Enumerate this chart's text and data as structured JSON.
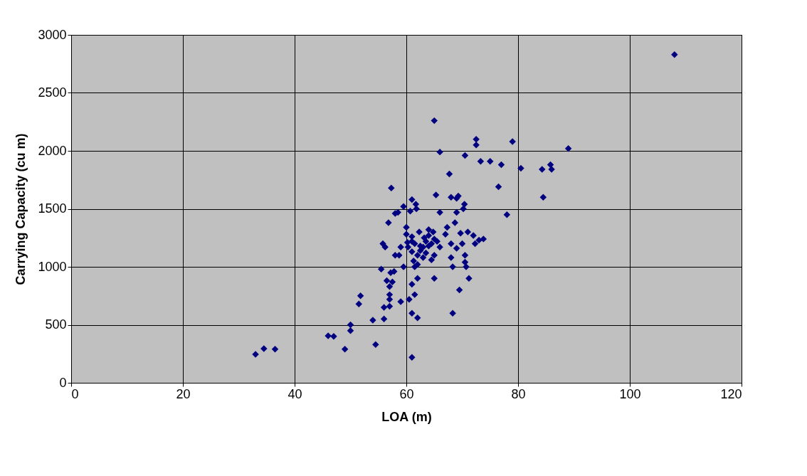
{
  "chart_data": {
    "type": "scatter",
    "xlabel": "LOA (m)",
    "ylabel": "Carrying Capacity (cu m)",
    "xlim": [
      0,
      120
    ],
    "xticks": [
      0,
      20,
      40,
      60,
      80,
      100,
      120
    ],
    "ylim": [
      0,
      3000
    ],
    "yticks": [
      0,
      500,
      1000,
      1500,
      2000,
      2500,
      3000
    ],
    "grid": true,
    "marker": "diamond",
    "series": [
      {
        "color": "#000080",
        "x": [
          33,
          34.5,
          36.5,
          46,
          47,
          49,
          50,
          50,
          51.5,
          51.8,
          54,
          54.5,
          55.5,
          55.8,
          56,
          56,
          56.2,
          56.5,
          56.8,
          57,
          57,
          57,
          57,
          57.2,
          57.5,
          57.3,
          57.8,
          58,
          58,
          58.5,
          58.7,
          59,
          59,
          59.5,
          59.5,
          60,
          60,
          60.2,
          60.3,
          60.5,
          60.7,
          61,
          61,
          61,
          61,
          61,
          61,
          61,
          61.3,
          61.5,
          61.5,
          61.5,
          61.7,
          61.8,
          62,
          62,
          62,
          62,
          62.3,
          62.5,
          62.5,
          63,
          63,
          63.2,
          63.5,
          63.5,
          64,
          64,
          64,
          64.5,
          64.5,
          64.8,
          65,
          65,
          65,
          65,
          65.3,
          65.5,
          66,
          66,
          66,
          67,
          67.3,
          67.7,
          68,
          68,
          68,
          68.3,
          68.3,
          68.7,
          69,
          69,
          69,
          69.3,
          69.5,
          69.7,
          70,
          70.2,
          70.4,
          70.5,
          70.5,
          70.5,
          70.7,
          71,
          71.2,
          72,
          72.3,
          72.5,
          72.5,
          73,
          73.3,
          73.8,
          75,
          76.5,
          77,
          78,
          79,
          80.5,
          84.3,
          84.5,
          85.8,
          86,
          89,
          108
        ],
        "values": [
          245,
          295,
          290,
          405,
          400,
          290,
          450,
          500,
          680,
          750,
          540,
          330,
          980,
          1200,
          650,
          550,
          1170,
          880,
          1380,
          660,
          720,
          760,
          830,
          950,
          870,
          1680,
          960,
          1100,
          1460,
          1470,
          1100,
          1170,
          700,
          1000,
          1520,
          1340,
          1280,
          1210,
          1170,
          720,
          1480,
          1580,
          1220,
          1260,
          1130,
          850,
          600,
          220,
          1050,
          1000,
          1200,
          760,
          1540,
          1500,
          1100,
          900,
          560,
          1020,
          1300,
          1180,
          1140,
          1080,
          1170,
          1250,
          1220,
          1120,
          1320,
          1270,
          1180,
          1060,
          1200,
          1300,
          1240,
          1100,
          900,
          2260,
          1620,
          1220,
          1990,
          1470,
          1170,
          1280,
          1340,
          1800,
          1200,
          1080,
          1600,
          1000,
          600,
          1380,
          1160,
          1470,
          1590,
          1610,
          800,
          1290,
          1200,
          1500,
          1540,
          1960,
          1100,
          1040,
          1000,
          1300,
          900,
          1270,
          1200,
          2100,
          2050,
          1230,
          1910,
          1240,
          1910,
          1690,
          1880,
          1450,
          2080,
          1850,
          1840,
          1600,
          1880,
          1840,
          2020,
          2830
        ]
      }
    ]
  }
}
